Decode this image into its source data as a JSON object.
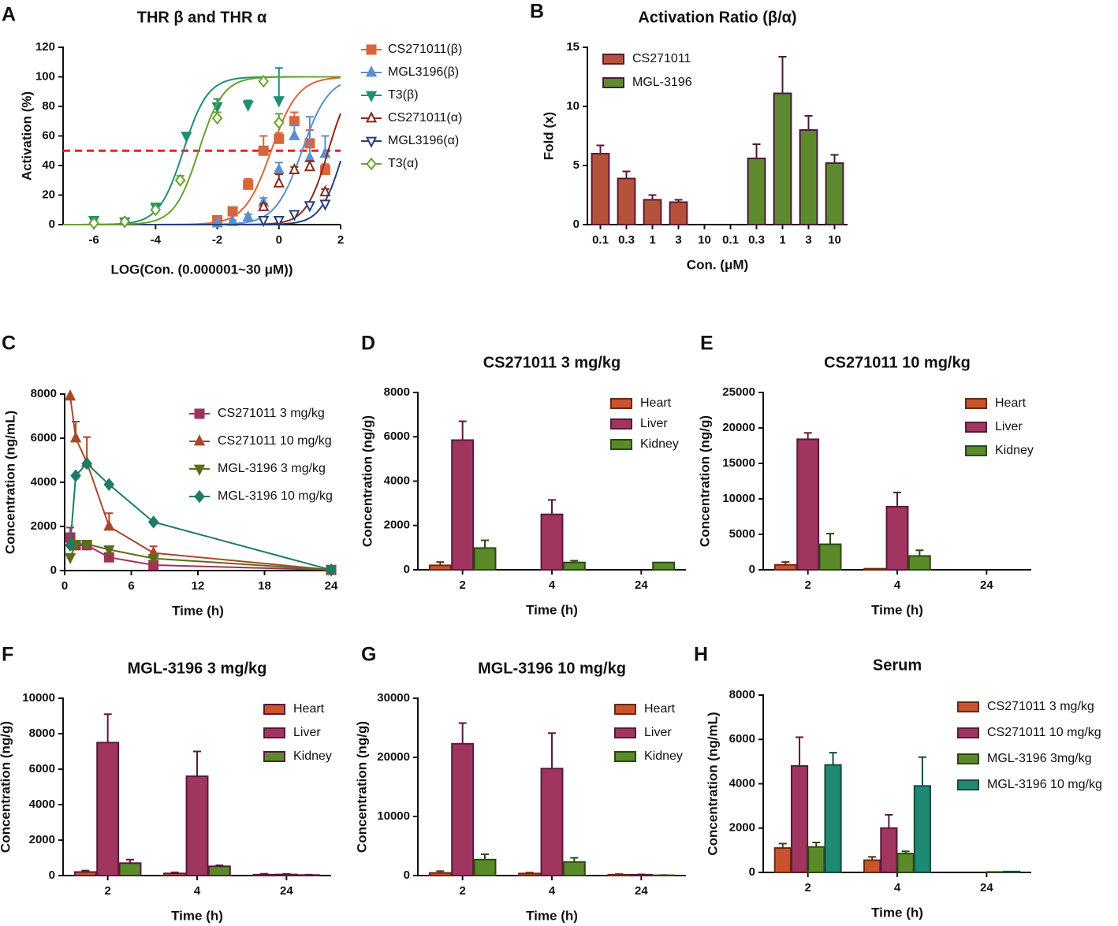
{
  "chart_data": [
    {
      "type": "scatter",
      "panel": "A",
      "title": "THR β and THR α",
      "x_label": "LOG(Con. (0.000001~30 μM))",
      "y_label": "Activation (%)",
      "xlim": [
        -7,
        2
      ],
      "xticks": [
        -6,
        -4,
        -2,
        0,
        2
      ],
      "ylim": [
        0,
        120
      ],
      "yticks": [
        0,
        20,
        40,
        60,
        80,
        100,
        120
      ],
      "reference_line": 50,
      "reference_color": "#e8231f",
      "series": [
        {
          "name": "CS271011(β)",
          "color": "#d9653b",
          "marker": "square",
          "filled": true,
          "x": [
            -2,
            -1.5,
            -1,
            -0.5,
            0,
            0.5,
            1,
            1.5
          ],
          "values": [
            3,
            9,
            27,
            50,
            58,
            70,
            55,
            37
          ],
          "errors": [
            2,
            2,
            4,
            10,
            4,
            6,
            9,
            4
          ],
          "fit": {
            "bottom": 0,
            "top": 100,
            "logec50": -0.25,
            "hill": 1
          }
        },
        {
          "name": "MGL3196(β)",
          "color": "#5b8fcf",
          "marker": "triangle",
          "filled": true,
          "x": [
            -2,
            -1.5,
            -1,
            -0.5,
            0,
            0.5,
            1,
            1.5
          ],
          "values": [
            1,
            2,
            5,
            15,
            37,
            60,
            45,
            48
          ],
          "errors": [
            1,
            1,
            2,
            3,
            5,
            8,
            28,
            12
          ],
          "fit": {
            "bottom": 0,
            "top": 100,
            "logec50": 0.75,
            "hill": 1
          }
        },
        {
          "name": "T3(β)",
          "color": "#1f8f74",
          "marker": "triangle-down",
          "filled": true,
          "x": [
            -6,
            -5,
            -4,
            -3,
            -2,
            -1,
            0
          ],
          "values": [
            3,
            2,
            12,
            60,
            80,
            81,
            84
          ],
          "errors": [
            2,
            1,
            2,
            2,
            5,
            3,
            22
          ],
          "fit": {
            "bottom": 0,
            "top": 100,
            "logec50": -3.1,
            "hill": 1.1
          }
        },
        {
          "name": "CS271011(α)",
          "color": "#8a2a1a",
          "marker": "triangle",
          "filled": false,
          "x": [
            -0.5,
            0,
            0.5,
            1,
            1.5
          ],
          "values": [
            12,
            28,
            37,
            39,
            22
          ],
          "errors": [
            2,
            6,
            2,
            4,
            2
          ],
          "fit": {
            "bottom": 0,
            "top": 100,
            "logec50": 1.6,
            "hill": 1.2
          }
        },
        {
          "name": "MGL3196(α)",
          "color": "#26407a",
          "marker": "triangle-down",
          "filled": false,
          "x": [
            -0.5,
            0,
            0.5,
            1,
            1.5
          ],
          "values": [
            3,
            3,
            7,
            13,
            14
          ],
          "errors": [
            0,
            0,
            1,
            1,
            2
          ],
          "fit": {
            "bottom": 0,
            "top": 100,
            "logec50": 2.1,
            "hill": 1.2
          }
        },
        {
          "name": "T3(α)",
          "color": "#6aa02c",
          "marker": "diamond",
          "filled": false,
          "x": [
            -6,
            -5,
            -4,
            -3.2,
            -2,
            -0.5,
            0
          ],
          "values": [
            1,
            2,
            10,
            30,
            72,
            97,
            69
          ],
          "errors": [
            1,
            1,
            1,
            3,
            4,
            3,
            6
          ],
          "fit": {
            "bottom": 0,
            "top": 100,
            "logec50": -2.6,
            "hill": 1.1
          }
        }
      ]
    },
    {
      "type": "bar",
      "panel": "B",
      "title": "Activation Ratio (β/α)",
      "x_label": "Con. (μM)",
      "y_label": "Fold (x)",
      "grouped": false,
      "categories": [
        "0.1",
        "0.3",
        "1",
        "3",
        "10",
        "0.1",
        "0.3",
        "1",
        "3",
        "10"
      ],
      "ylim": [
        0,
        15
      ],
      "yticks": [
        0,
        5,
        10,
        15
      ],
      "series": [
        {
          "name": "CS271011",
          "color": "#b5533a",
          "edge": "#5a1a3a",
          "label_color": "#8a2a1a",
          "values": [
            6.0,
            3.9,
            2.1,
            1.9,
            null,
            null,
            null,
            null,
            null,
            null
          ],
          "errors": [
            0.7,
            0.6,
            0.4,
            0.2,
            null,
            null,
            null,
            null,
            null,
            null
          ]
        },
        {
          "name": "MGL-3196",
          "color": "#5d8a2e",
          "edge": "#4a1a3a",
          "label_color": "#3d6a10",
          "values": [
            null,
            null,
            null,
            null,
            null,
            null,
            5.6,
            11.1,
            8.0,
            5.2
          ],
          "errors": [
            null,
            null,
            null,
            null,
            null,
            null,
            1.2,
            3.1,
            1.2,
            0.7
          ]
        }
      ]
    },
    {
      "type": "line",
      "panel": "C",
      "x_label": "Time (h)",
      "y_label": "Concentration (ng/mL)",
      "x": [
        0.5,
        1,
        2,
        4,
        8,
        24
      ],
      "xlim": [
        0,
        24
      ],
      "xticks": [
        0,
        6,
        12,
        18,
        24
      ],
      "ylim": [
        0,
        8000
      ],
      "yticks": [
        0,
        2000,
        4000,
        6000,
        8000
      ],
      "series": [
        {
          "name": "CS271011 3 mg/kg",
          "color": "#a0325c",
          "marker": "square",
          "filled": true,
          "values": [
            1500,
            1150,
            1150,
            600,
            250,
            30
          ],
          "errors": [
            450,
            100,
            100,
            80,
            60,
            0
          ]
        },
        {
          "name": "CS271011 10 mg/kg",
          "color": "#a8482a",
          "marker": "triangle",
          "filled": true,
          "values": [
            7900,
            6000,
            4900,
            2000,
            800,
            30
          ],
          "errors": [
            0,
            750,
            1150,
            600,
            300,
            0
          ]
        },
        {
          "name": "MGL-3196 3 mg/kg",
          "color": "#5a6e1a",
          "marker": "triangle-down",
          "filled": true,
          "values": [
            600,
            1200,
            1200,
            950,
            550,
            30
          ],
          "errors": [
            0,
            0,
            0,
            0,
            0,
            0
          ]
        },
        {
          "name": "MGL-3196 10 mg/kg",
          "color": "#1f7a66",
          "marker": "diamond",
          "filled": true,
          "values": [
            1150,
            4300,
            4850,
            3900,
            2200,
            30
          ],
          "errors": [
            0,
            0,
            0,
            0,
            0,
            0
          ]
        }
      ]
    },
    {
      "type": "bar",
      "panel": "D",
      "title": "CS271011 3 mg/kg",
      "x_label": "Time (h)",
      "y_label": "Concentration (ng/g)",
      "grouped": true,
      "categories": [
        "2",
        "4",
        "24"
      ],
      "ylim": [
        0,
        8000
      ],
      "yticks": [
        0,
        2000,
        4000,
        6000,
        8000
      ],
      "series": [
        {
          "name": "Heart",
          "color": "#c8552f",
          "edge": "#6a2a10",
          "label_color": "#8a3a10",
          "values": [
            200,
            null,
            null
          ],
          "errors": [
            150,
            null,
            null
          ]
        },
        {
          "name": "Liver",
          "color": "#a03560",
          "edge": "#5a1a3a",
          "label_color": "#8a2050",
          "values": [
            5850,
            2500,
            null
          ],
          "errors": [
            850,
            650,
            null
          ]
        },
        {
          "name": "Kidney",
          "color": "#5a8a2a",
          "edge": "#2a4a10",
          "label_color": "#3d6a10",
          "values": [
            980,
            330,
            330
          ],
          "errors": [
            350,
            80,
            0
          ]
        }
      ]
    },
    {
      "type": "bar",
      "panel": "E",
      "title": "CS271011 10 mg/kg",
      "x_label": "Time (h)",
      "y_label": "Concentration (ng/g)",
      "grouped": true,
      "categories": [
        "2",
        "4",
        "24"
      ],
      "ylim": [
        0,
        25000
      ],
      "yticks": [
        0,
        5000,
        10000,
        15000,
        20000,
        25000
      ],
      "series": [
        {
          "name": "Heart",
          "color": "#c8552f",
          "edge": "#6a2a10",
          "label_color": "#8a3a10",
          "values": [
            700,
            150,
            null
          ],
          "errors": [
            400,
            0,
            null
          ]
        },
        {
          "name": "Liver",
          "color": "#a03560",
          "edge": "#5a1a3a",
          "label_color": "#8a2050",
          "values": [
            18400,
            8900,
            null
          ],
          "errors": [
            900,
            2000,
            null
          ]
        },
        {
          "name": "Kidney",
          "color": "#5a8a2a",
          "edge": "#2a4a10",
          "label_color": "#3d6a10",
          "values": [
            3600,
            1950,
            null
          ],
          "errors": [
            1500,
            800,
            null
          ]
        }
      ]
    },
    {
      "type": "bar",
      "panel": "F",
      "title": "MGL-3196 3 mg/kg",
      "x_label": "Time (h)",
      "y_label": "Concentration (ng/g)",
      "grouped": true,
      "categories": [
        "2",
        "4",
        "24"
      ],
      "ylim": [
        0,
        10000
      ],
      "yticks": [
        0,
        2000,
        4000,
        6000,
        8000,
        10000
      ],
      "series": [
        {
          "name": "Heart",
          "color": "#c8552f",
          "edge": "#5a1a3a",
          "label_color": "#8a3a10",
          "values": [
            200,
            120,
            50
          ],
          "errors": [
            80,
            60,
            50
          ]
        },
        {
          "name": "Liver",
          "color": "#a03560",
          "edge": "#5a1a3a",
          "label_color": "#8a2050",
          "values": [
            7500,
            5600,
            60
          ],
          "errors": [
            1600,
            1400,
            30
          ]
        },
        {
          "name": "Kidney",
          "color": "#5a8a2a",
          "edge": "#5a1a3a",
          "label_color": "#3d6a10",
          "values": [
            700,
            520,
            30
          ],
          "errors": [
            200,
            60,
            20
          ]
        }
      ]
    },
    {
      "type": "bar",
      "panel": "G",
      "title": "MGL-3196 10 mg/kg",
      "x_label": "Time (h)",
      "y_label": "Concentration (ng/g)",
      "grouped": true,
      "categories": [
        "2",
        "4",
        "24"
      ],
      "ylim": [
        0,
        30000
      ],
      "yticks": [
        0,
        10000,
        20000,
        30000
      ],
      "series": [
        {
          "name": "Heart",
          "color": "#c8552f",
          "edge": "#6a2a10",
          "label_color": "#8a3a10",
          "values": [
            450,
            350,
            150
          ],
          "errors": [
            300,
            150,
            100
          ]
        },
        {
          "name": "Liver",
          "color": "#a03560",
          "edge": "#5a1a3a",
          "label_color": "#8a2050",
          "values": [
            22300,
            18100,
            150
          ],
          "errors": [
            3500,
            6000,
            50
          ]
        },
        {
          "name": "Kidney",
          "color": "#5a8a2a",
          "edge": "#2a4a10",
          "label_color": "#3d6a10",
          "values": [
            2700,
            2300,
            50
          ],
          "errors": [
            900,
            700,
            30
          ]
        }
      ]
    },
    {
      "type": "bar",
      "panel": "H",
      "title": "Serum",
      "x_label": "Time (h)",
      "y_label": "Concentration (ng/mL)",
      "grouped": true,
      "categories": [
        "2",
        "4",
        "24"
      ],
      "ylim": [
        0,
        8000
      ],
      "yticks": [
        0,
        2000,
        4000,
        6000,
        8000
      ],
      "series": [
        {
          "name": "CS271011 3 mg/kg",
          "color": "#c8552f",
          "edge": "#6a2a10",
          "label_color": "#a8482a",
          "values": [
            1100,
            550,
            null
          ],
          "errors": [
            200,
            150,
            null
          ]
        },
        {
          "name": "CS271011 10 mg/kg",
          "color": "#a03560",
          "edge": "#5a1a3a",
          "label_color": "#8a2050",
          "values": [
            4800,
            2000,
            null
          ],
          "errors": [
            1300,
            600,
            null
          ]
        },
        {
          "name": "MGL-3196 3mg/kg",
          "color": "#5a8a2a",
          "edge": "#2a4a10",
          "label_color": "#4d7a1a",
          "values": [
            1150,
            850,
            20
          ],
          "errors": [
            200,
            100,
            0
          ]
        },
        {
          "name": "MGL-3196 10 mg/kg",
          "color": "#1f8a74",
          "edge": "#1a4a40",
          "label_color": "#1f6a5a",
          "values": [
            4850,
            3900,
            40
          ],
          "errors": [
            550,
            1300,
            0
          ]
        }
      ]
    }
  ]
}
